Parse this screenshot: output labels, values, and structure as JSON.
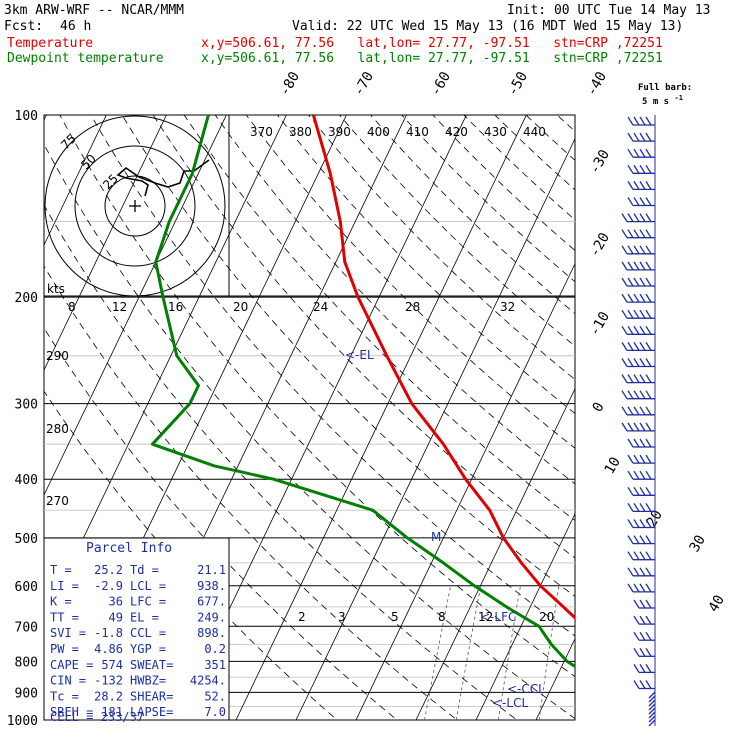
{
  "header": {
    "model": "3km ARW-WRF -- NCAR/MMM",
    "init": "Init: 00 UTC Tue 14 May 13",
    "fcst_label": "Fcst:",
    "fcst_value": "46 h",
    "valid": "Valid: 22 UTC Wed 15 May 13 (16 MDT Wed 15 May 13)",
    "temp_label": "Temperature",
    "temp_info": "x,y=506.61, 77.56   lat,lon= 27.77, -97.51   stn=CRP ,72251",
    "dew_label": "Dewpoint temperature",
    "dew_info": "x,y=506.61, 77.56   lat,lon= 27.77, -97.51   stn=CRP ,72251",
    "barb_note_1": "Full barb:",
    "barb_note_2": "5 m s",
    "barb_note_exp": "-1",
    "temp_color": "#e00000",
    "dew_color": "#008000",
    "index_color": "#1f2fa0"
  },
  "chart_data": {
    "type": "line",
    "title": "",
    "pressure_levels": [
      100,
      200,
      300,
      400,
      500,
      600,
      700,
      800,
      900,
      1000
    ],
    "isotherm_labels": [
      "-80",
      "-70",
      "-60",
      "-50",
      "-40",
      "-30",
      "-20",
      "-10",
      "0",
      "10",
      "20",
      "30",
      "40"
    ],
    "theta_labels": [
      "370",
      "380",
      "390",
      "400",
      "410",
      "420",
      "430",
      "440"
    ],
    "theta_side_labels": [
      "290",
      "280",
      "270"
    ],
    "mixing_ratio_labels": [
      "2",
      "3",
      "5",
      "8",
      "12",
      "20"
    ],
    "hodograph": {
      "ring_labels": [
        "75",
        "50",
        "25"
      ],
      "unit": "kts",
      "speed_labels": [
        "8",
        "12",
        "16",
        "20",
        "24",
        "28",
        "32"
      ]
    },
    "series": [
      {
        "name": "Temperature",
        "color": "#e00000",
        "points": [
          [
            100,
            -75.5
          ],
          [
            125,
            -68
          ],
          [
            150,
            -62.5
          ],
          [
            175,
            -58.5
          ],
          [
            200,
            -53.5
          ],
          [
            250,
            -44
          ],
          [
            300,
            -36
          ],
          [
            350,
            -27.5
          ],
          [
            400,
            -21
          ],
          [
            450,
            -14.5
          ],
          [
            500,
            -10
          ],
          [
            550,
            -5
          ],
          [
            600,
            0
          ],
          [
            650,
            5.5
          ],
          [
            700,
            10.5
          ],
          [
            750,
            15
          ],
          [
            800,
            19
          ],
          [
            850,
            21.5
          ],
          [
            900,
            23
          ],
          [
            950,
            24.5
          ],
          [
            1000,
            26.5
          ]
        ]
      },
      {
        "name": "Dewpoint temperature",
        "color": "#008000",
        "points": [
          [
            100,
            -93
          ],
          [
            125,
            -91
          ],
          [
            150,
            -91
          ],
          [
            175,
            -90
          ],
          [
            200,
            -86
          ],
          [
            250,
            -79
          ],
          [
            280,
            -73
          ],
          [
            300,
            -73
          ],
          [
            350,
            -76
          ],
          [
            380,
            -64
          ],
          [
            400,
            -53
          ],
          [
            450,
            -34
          ],
          [
            500,
            -26
          ],
          [
            550,
            -18
          ],
          [
            600,
            -11
          ],
          [
            650,
            -4
          ],
          [
            700,
            3
          ],
          [
            750,
            6.5
          ],
          [
            800,
            10.5
          ],
          [
            850,
            16
          ],
          [
            900,
            19
          ],
          [
            950,
            21
          ],
          [
            1000,
            21
          ]
        ]
      }
    ],
    "parcel_labels": {
      "el": "EL",
      "lfc": "LFC",
      "ccl": "CCL",
      "lcl": "LCL",
      "m": "M"
    },
    "parcel_info": {
      "title": "Parcel Info",
      "rows": [
        [
          "T  =",
          "25.2",
          "Td =",
          "21.1"
        ],
        [
          "LI =",
          "-2.9",
          "LCL =",
          "938."
        ],
        [
          "K  =",
          "36",
          "LFC =",
          "677."
        ],
        [
          "TT =",
          "49",
          "EL =",
          "249."
        ],
        [
          "SVI =",
          "-1.8",
          "CCL =",
          "898."
        ],
        [
          "PW =",
          "4.86",
          "YGP =",
          "0.2"
        ],
        [
          "CAPE =",
          "574",
          "SWEAT=",
          "351"
        ],
        [
          "CIN =",
          "-132",
          "HWBZ=",
          "4254."
        ],
        [
          "Tc =",
          "28.2",
          "SHEAR=",
          "52."
        ],
        [
          "SREH =",
          "181",
          "LAPSE=",
          "7.0"
        ]
      ],
      "cell": "CELL = 233/37"
    }
  }
}
